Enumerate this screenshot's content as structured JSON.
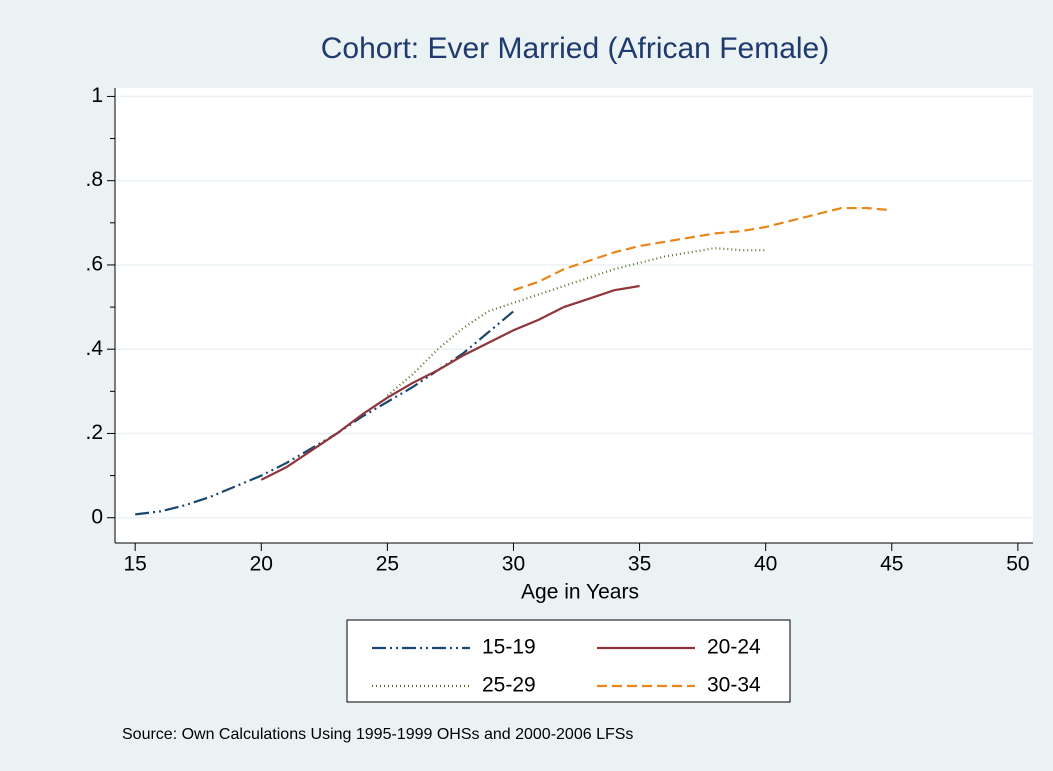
{
  "chart_data": {
    "type": "line",
    "title": "Cohort: Ever Married (African Female)",
    "x_label": "Age in Years",
    "note": "Source: Own Calculations Using 1995-1999 OHSs and 2000-2006 LFSs",
    "xlim": [
      14.2,
      50.6
    ],
    "ylim": [
      -0.06,
      1.02
    ],
    "xticks": [
      15,
      20,
      25,
      30,
      35,
      40,
      45,
      50
    ],
    "yticks": [
      0,
      {
        "value": 0.2,
        "label": ".2"
      },
      {
        "value": 0.4,
        "label": ".4"
      },
      {
        "value": 0.6,
        "label": ".6"
      },
      {
        "value": 0.8,
        "label": ".8"
      },
      1
    ],
    "yminorticks": [
      0.1,
      0.3,
      0.5,
      0.7,
      0.9
    ],
    "grid": true,
    "series": [
      {
        "name": "15-19",
        "color": "#1a476f",
        "dash": "14 4 2 4 2 4",
        "x": [
          15,
          16,
          17,
          18,
          19,
          20,
          21,
          22,
          23,
          24,
          25,
          26,
          27,
          28,
          29,
          30
        ],
        "values": [
          0.008,
          0.015,
          0.03,
          0.05,
          0.075,
          0.1,
          0.13,
          0.165,
          0.2,
          0.24,
          0.275,
          0.31,
          0.35,
          0.39,
          0.44,
          0.49
        ]
      },
      {
        "name": "20-24",
        "color": "#90353b",
        "dash": "none",
        "x": [
          20,
          21,
          22,
          23,
          24,
          25,
          26,
          27,
          28,
          29,
          30,
          31,
          32,
          33,
          34,
          35
        ],
        "values": [
          0.09,
          0.12,
          0.16,
          0.2,
          0.245,
          0.285,
          0.32,
          0.35,
          0.385,
          0.415,
          0.445,
          0.47,
          0.5,
          0.52,
          0.54,
          0.55
        ]
      },
      {
        "name": "25-29",
        "color": "#55752f",
        "dash": "1 3",
        "x": [
          25,
          26,
          27,
          28,
          29,
          30,
          31,
          32,
          33,
          34,
          35,
          36,
          37,
          38,
          39,
          40
        ],
        "values": [
          0.29,
          0.34,
          0.4,
          0.45,
          0.49,
          0.51,
          0.53,
          0.55,
          0.57,
          0.59,
          0.605,
          0.62,
          0.63,
          0.64,
          0.635,
          0.635
        ]
      },
      {
        "name": "30-34",
        "color": "#e8861a",
        "dash": "10 5",
        "x": [
          30,
          31,
          32,
          33,
          34,
          35,
          36,
          37,
          38,
          39,
          40,
          41,
          42,
          43,
          44,
          45
        ],
        "values": [
          0.54,
          0.56,
          0.59,
          0.61,
          0.63,
          0.645,
          0.655,
          0.665,
          0.675,
          0.68,
          0.69,
          0.705,
          0.72,
          0.735,
          0.735,
          0.73
        ]
      }
    ]
  }
}
